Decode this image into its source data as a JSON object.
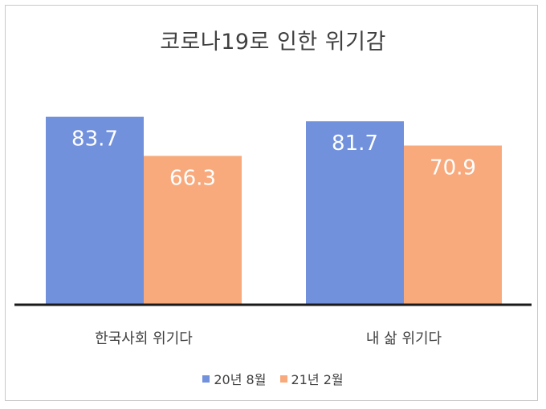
{
  "chart_data": {
    "type": "bar",
    "title": "코로나19로 인한 위기감",
    "categories": [
      "한국사회 위기다",
      "내 삶 위기다"
    ],
    "series": [
      {
        "name": "20년 8월",
        "values": [
          83.7,
          81.7
        ],
        "color": "#7191dd"
      },
      {
        "name": "21년 2월",
        "values": [
          66.3,
          70.9
        ],
        "color": "#f8aa7d"
      }
    ],
    "ylim": [
      0,
      100
    ],
    "grid": false,
    "legend_position": "bottom"
  }
}
